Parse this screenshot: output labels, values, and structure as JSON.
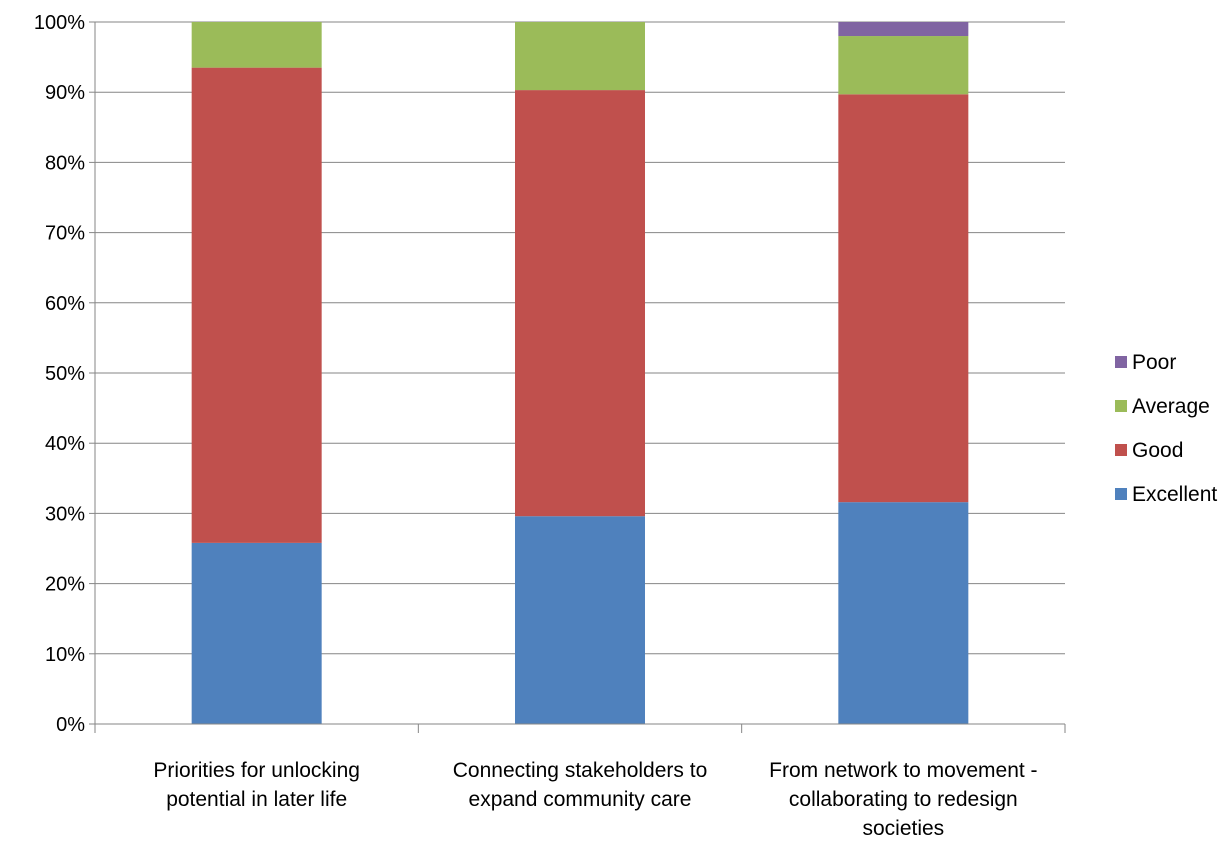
{
  "chart_data": {
    "type": "bar",
    "stacked": "percent",
    "title": "",
    "xlabel": "",
    "ylabel": "",
    "ylim": [
      0,
      100
    ],
    "y_ticks": [
      "0%",
      "10%",
      "20%",
      "30%",
      "40%",
      "50%",
      "60%",
      "70%",
      "80%",
      "90%",
      "100%"
    ],
    "grid": true,
    "legend_position": "right",
    "categories": [
      "Priorities for unlocking potential in later life",
      "Connecting stakeholders to expand community care",
      "From network to movement - collaborating to redesign societies"
    ],
    "category_label_lines": [
      [
        "Priorities for unlocking",
        "potential in later life"
      ],
      [
        "Connecting stakeholders to",
        "expand community care"
      ],
      [
        "From network to movement -",
        "collaborating to redesign",
        "societies"
      ]
    ],
    "series": [
      {
        "name": "Excellent",
        "color": "#4F81BD",
        "values": [
          25.8,
          29.6,
          31.6
        ]
      },
      {
        "name": "Good",
        "color": "#C0504D",
        "values": [
          67.7,
          60.7,
          58.1
        ]
      },
      {
        "name": "Average",
        "color": "#9BBB59",
        "values": [
          6.5,
          9.7,
          8.3
        ]
      },
      {
        "name": "Poor",
        "color": "#8064A2",
        "values": [
          0.0,
          0.0,
          2.0
        ]
      }
    ],
    "legend_order": [
      "Poor",
      "Average",
      "Good",
      "Excellent"
    ]
  }
}
